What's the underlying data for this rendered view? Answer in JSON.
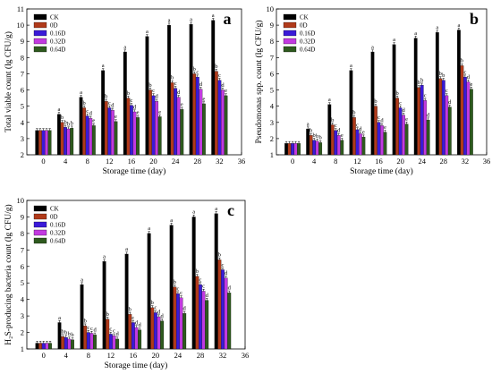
{
  "colors": {
    "CK": "#000000",
    "0D": "#b03a1a",
    "0.16D": "#3a1ad8",
    "0.32D": "#c23ae0",
    "0.64D": "#2e5a1e"
  },
  "chart_data": [
    {
      "type": "bar",
      "panel_label": "a",
      "xlabel": "Storage time (day)",
      "ylabel": "Total viable count (lg CFU/g)",
      "xlim": [
        -3,
        36
      ],
      "xticks": [
        0,
        4,
        8,
        12,
        16,
        20,
        24,
        28,
        32,
        36
      ],
      "ylim": [
        2,
        11
      ],
      "yticks": [
        2,
        3,
        4,
        5,
        6,
        7,
        8,
        9,
        10,
        11
      ],
      "legend_position": "top-left",
      "x": [
        0,
        4,
        8,
        12,
        16,
        20,
        24,
        28,
        32
      ],
      "series": [
        {
          "name": "CK",
          "values": [
            3.5,
            4.5,
            5.55,
            7.2,
            8.35,
            9.3,
            10.0,
            10.05,
            10.3
          ],
          "labels": [
            "",
            "a",
            "a",
            "a",
            "a",
            "a",
            "a",
            "a",
            "a"
          ]
        },
        {
          "name": "0D",
          "values": [
            3.5,
            4.0,
            4.9,
            5.3,
            5.5,
            6.0,
            6.45,
            7.0,
            7.15
          ],
          "labels": [
            "",
            "b",
            "b",
            "b",
            "b",
            "b",
            "b",
            "b",
            "b"
          ]
        },
        {
          "name": "0.16D",
          "values": [
            3.5,
            3.7,
            4.4,
            4.9,
            5.05,
            5.65,
            6.1,
            6.8,
            6.6
          ],
          "labels": [
            "",
            "b",
            "c",
            "c",
            "c",
            "c",
            "c",
            "c",
            "c"
          ]
        },
        {
          "name": "0.32D",
          "values": [
            3.5,
            3.6,
            4.25,
            4.75,
            4.65,
            5.3,
            5.55,
            6.05,
            6.0
          ],
          "labels": [
            "",
            "b",
            "d",
            "d",
            "d",
            "d",
            "d",
            "d",
            "d"
          ]
        },
        {
          "name": "0.64D",
          "values": [
            3.5,
            3.65,
            3.8,
            4.05,
            4.3,
            4.35,
            4.8,
            5.15,
            5.65
          ],
          "labels": [
            "",
            "b",
            "e",
            "e",
            "e",
            "e",
            "e",
            "e",
            "e"
          ]
        }
      ]
    },
    {
      "type": "bar",
      "panel_label": "b",
      "xlabel": "Storage time (day)",
      "ylabel": "Pseudomonas spp. count (lg CFU/g)",
      "xlim": [
        -3,
        36
      ],
      "xticks": [
        0,
        4,
        8,
        12,
        16,
        20,
        24,
        28,
        32,
        36
      ],
      "ylim": [
        1,
        10
      ],
      "yticks": [
        1,
        2,
        3,
        4,
        5,
        6,
        7,
        8,
        9,
        10
      ],
      "legend_position": "top-left",
      "x": [
        0,
        4,
        8,
        12,
        16,
        20,
        24,
        28,
        32
      ],
      "series": [
        {
          "name": "CK",
          "values": [
            1.7,
            2.6,
            4.1,
            6.2,
            7.35,
            7.8,
            8.2,
            8.55,
            8.7
          ],
          "labels": [
            "",
            "a",
            "a",
            "a",
            "a",
            "a",
            "a",
            "a",
            "a"
          ]
        },
        {
          "name": "0D",
          "values": [
            1.7,
            2.2,
            2.85,
            3.3,
            4.0,
            4.5,
            5.15,
            5.7,
            6.5
          ],
          "labels": [
            "",
            "b",
            "b",
            "b",
            "b",
            "b",
            "b",
            "b",
            "b"
          ]
        },
        {
          "name": "0.16D",
          "values": [
            1.7,
            1.9,
            2.5,
            2.55,
            3.0,
            3.9,
            5.3,
            5.6,
            5.8
          ],
          "labels": [
            "",
            "b",
            "c",
            "c",
            "c",
            "c",
            "b",
            "b",
            "c"
          ]
        },
        {
          "name": "0.32D",
          "values": [
            1.7,
            1.85,
            2.2,
            2.3,
            2.8,
            3.45,
            4.35,
            4.65,
            5.5
          ],
          "labels": [
            "",
            "b",
            "d",
            "d",
            "d",
            "d",
            "c",
            "c",
            "d"
          ]
        },
        {
          "name": "0.64D",
          "values": [
            1.7,
            1.75,
            1.9,
            2.1,
            2.4,
            2.9,
            3.15,
            3.95,
            5.05
          ],
          "labels": [
            "",
            "b",
            "e",
            "e",
            "e",
            "e",
            "d",
            "d",
            "e"
          ]
        }
      ]
    },
    {
      "type": "bar",
      "panel_label": "c",
      "xlabel": "Storage time (day)",
      "ylabel": "H₂S-producing bacteria count (lg CFU/g)",
      "xlim": [
        -3,
        36
      ],
      "xticks": [
        0,
        4,
        8,
        12,
        16,
        20,
        24,
        28,
        32,
        36
      ],
      "ylim": [
        1,
        10
      ],
      "yticks": [
        1,
        2,
        3,
        4,
        5,
        6,
        7,
        8,
        9,
        10
      ],
      "legend_position": "top-left",
      "x": [
        0,
        4,
        8,
        12,
        16,
        20,
        24,
        28,
        32
      ],
      "series": [
        {
          "name": "CK",
          "values": [
            1.35,
            2.6,
            4.9,
            6.3,
            6.75,
            8.0,
            8.5,
            9.0,
            9.2
          ],
          "labels": [
            "",
            "a",
            "a",
            "a",
            "a",
            "a",
            "a",
            "a",
            "a"
          ]
        },
        {
          "name": "0D",
          "values": [
            1.35,
            1.75,
            2.4,
            2.8,
            3.1,
            3.5,
            4.75,
            5.4,
            6.4
          ],
          "labels": [
            "",
            "b",
            "b",
            "b",
            "b",
            "b",
            "b",
            "b",
            "b"
          ]
        },
        {
          "name": "0.16D",
          "values": [
            1.35,
            1.7,
            2.0,
            1.9,
            2.6,
            3.2,
            4.35,
            4.9,
            5.8
          ],
          "labels": [
            "",
            "b",
            "c",
            "c",
            "c",
            "c",
            "c",
            "c",
            "c"
          ]
        },
        {
          "name": "0.32D",
          "values": [
            1.35,
            1.6,
            1.95,
            1.8,
            2.3,
            2.95,
            4.1,
            4.5,
            5.3
          ],
          "labels": [
            "",
            "b",
            "c",
            "c",
            "d",
            "d",
            "c",
            "c",
            "d"
          ]
        },
        {
          "name": "0.64D",
          "values": [
            1.35,
            1.55,
            1.85,
            1.6,
            2.15,
            2.7,
            3.15,
            3.95,
            4.4
          ],
          "labels": [
            "",
            "b",
            "d",
            "d",
            "d",
            "d",
            "d",
            "d",
            "d"
          ]
        }
      ]
    }
  ]
}
